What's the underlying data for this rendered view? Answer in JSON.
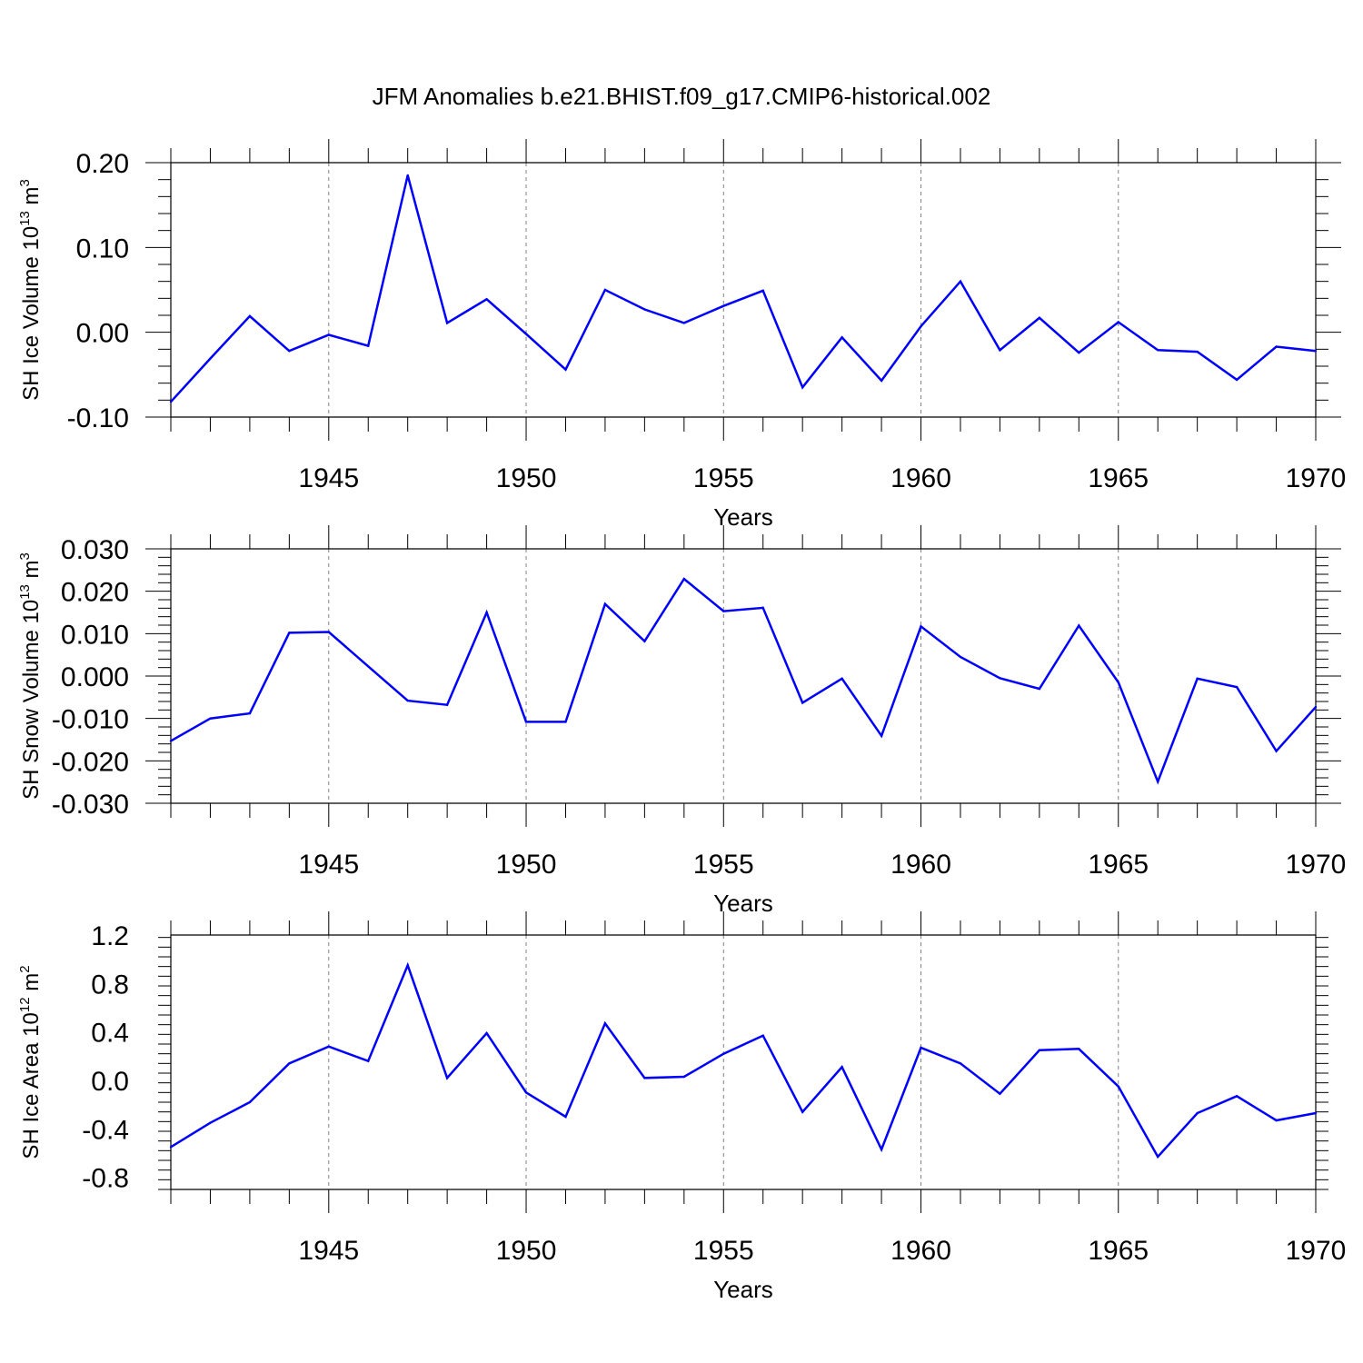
{
  "title": "JFM Anomalies b.e21.BHIST.f09_g17.CMIP6-historical.002",
  "colors": {
    "line": "#0000ff",
    "frame": "#000000",
    "grid": "#808080"
  },
  "chart_data": [
    {
      "type": "line",
      "ylabel": {
        "text": "SH Ice Volume 10",
        "sup_exp": "13",
        "unit": " m",
        "sup_unit": "3"
      },
      "xlabel": "Years",
      "xlim": [
        1941,
        1970
      ],
      "ylim": [
        -0.1,
        0.2
      ],
      "yticks": [
        -0.1,
        0.0,
        0.1,
        0.2
      ],
      "ytick_labels": [
        "-0.10",
        "0.00",
        "0.10",
        "0.20"
      ],
      "xticks": [
        1945,
        1950,
        1955,
        1960,
        1965,
        1970
      ],
      "xtick_labels": [
        "1945",
        "1950",
        "1955",
        "1960",
        "1965",
        "1970"
      ],
      "x": [
        1941,
        1942,
        1943,
        1944,
        1945,
        1946,
        1947,
        1948,
        1949,
        1950,
        1951,
        1952,
        1953,
        1954,
        1955,
        1956,
        1957,
        1958,
        1959,
        1960,
        1961,
        1962,
        1963,
        1964,
        1965,
        1966,
        1967,
        1968,
        1969,
        1970
      ],
      "values": [
        -0.082,
        -0.031,
        0.019,
        -0.022,
        -0.003,
        -0.016,
        0.185,
        0.011,
        0.039,
        -0.002,
        -0.044,
        0.05,
        0.027,
        0.011,
        0.031,
        0.049,
        -0.065,
        -0.006,
        -0.057,
        0.007,
        0.06,
        -0.021,
        0.017,
        -0.024,
        0.012,
        -0.021,
        -0.023,
        -0.056,
        -0.017,
        -0.022
      ]
    },
    {
      "type": "line",
      "ylabel": {
        "text": "SH Snow Volume 10",
        "sup_exp": "13",
        "unit": " m",
        "sup_unit": "3"
      },
      "xlabel": "Years",
      "xlim": [
        1941,
        1970
      ],
      "ylim": [
        -0.03,
        0.03
      ],
      "yticks": [
        -0.03,
        -0.02,
        -0.01,
        0.0,
        0.01,
        0.02,
        0.03
      ],
      "ytick_labels": [
        "-0.030",
        "-0.020",
        "-0.010",
        "0.000",
        "0.010",
        "0.020",
        "0.030"
      ],
      "xticks": [
        1945,
        1950,
        1955,
        1960,
        1965,
        1970
      ],
      "xtick_labels": [
        "1945",
        "1950",
        "1955",
        "1960",
        "1965",
        "1970"
      ],
      "x": [
        1941,
        1942,
        1943,
        1944,
        1945,
        1946,
        1947,
        1948,
        1949,
        1950,
        1951,
        1952,
        1953,
        1954,
        1955,
        1956,
        1957,
        1958,
        1959,
        1960,
        1961,
        1962,
        1963,
        1964,
        1965,
        1966,
        1967,
        1968,
        1969,
        1970
      ],
      "values": [
        -0.0153,
        -0.01,
        -0.0088,
        0.0102,
        0.0104,
        0.0023,
        -0.0058,
        -0.0068,
        0.015,
        -0.0108,
        -0.0108,
        0.017,
        0.0082,
        0.0229,
        0.0153,
        0.0161,
        -0.0063,
        -0.0006,
        -0.0141,
        0.0117,
        0.0045,
        -0.0005,
        -0.003,
        0.0119,
        -0.0015,
        -0.0249,
        -0.0006,
        -0.0026,
        -0.0177,
        -0.0073
      ]
    },
    {
      "type": "line",
      "ylabel": {
        "text": "SH Ice Area 10",
        "sup_exp": "12",
        "unit": " m",
        "sup_unit": "2"
      },
      "xlabel": "Years",
      "xlim": [
        1941,
        1970
      ],
      "ylim": [
        -0.9,
        1.2
      ],
      "yticks": [
        -0.8,
        -0.4,
        0.0,
        0.4,
        0.8,
        1.2
      ],
      "ytick_labels": [
        "-0.8",
        "-0.4",
        "0.0",
        "0.4",
        "0.8",
        "1.2"
      ],
      "xticks": [
        1945,
        1950,
        1955,
        1960,
        1965,
        1970
      ],
      "xtick_labels": [
        "1945",
        "1950",
        "1955",
        "1960",
        "1965",
        "1970"
      ],
      "x": [
        1941,
        1942,
        1943,
        1944,
        1945,
        1946,
        1947,
        1948,
        1949,
        1950,
        1951,
        1952,
        1953,
        1954,
        1955,
        1956,
        1957,
        1958,
        1959,
        1960,
        1961,
        1962,
        1963,
        1964,
        1965,
        1966,
        1967,
        1968,
        1969,
        1970
      ],
      "values": [
        -0.55,
        -0.35,
        -0.18,
        0.14,
        0.28,
        0.16,
        0.95,
        0.02,
        0.39,
        -0.1,
        -0.3,
        0.47,
        0.02,
        0.03,
        0.22,
        0.37,
        -0.26,
        0.11,
        -0.57,
        0.27,
        0.14,
        -0.11,
        0.25,
        0.26,
        -0.05,
        -0.63,
        -0.27,
        -0.13,
        -0.33,
        -0.27
      ]
    }
  ]
}
